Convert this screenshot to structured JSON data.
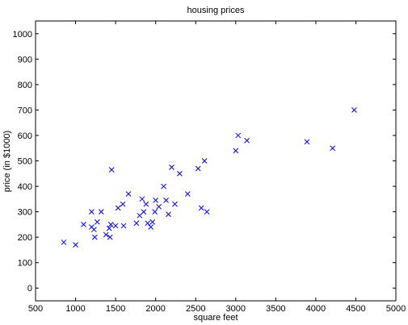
{
  "chart_data": {
    "type": "scatter",
    "title": "housing prices",
    "xlabel": "square feet",
    "ylabel": "price (in $1000)",
    "xlim": [
      500,
      5000
    ],
    "ylim": [
      -50,
      1050
    ],
    "xticks": [
      500,
      1000,
      1500,
      2000,
      2500,
      3000,
      3500,
      4000,
      4500,
      5000
    ],
    "yticks": [
      0,
      100,
      200,
      300,
      400,
      500,
      600,
      700,
      800,
      900,
      1000
    ],
    "marker": "x",
    "marker_color": "#0000ff",
    "grid": false,
    "series": [
      {
        "points": [
          {
            "x": 852,
            "y": 180
          },
          {
            "x": 1000,
            "y": 170
          },
          {
            "x": 1100,
            "y": 250
          },
          {
            "x": 1200,
            "y": 300
          },
          {
            "x": 1200,
            "y": 240
          },
          {
            "x": 1230,
            "y": 230
          },
          {
            "x": 1240,
            "y": 200
          },
          {
            "x": 1270,
            "y": 260
          },
          {
            "x": 1320,
            "y": 300
          },
          {
            "x": 1380,
            "y": 210
          },
          {
            "x": 1420,
            "y": 235
          },
          {
            "x": 1430,
            "y": 200
          },
          {
            "x": 1440,
            "y": 250
          },
          {
            "x": 1450,
            "y": 465
          },
          {
            "x": 1500,
            "y": 245
          },
          {
            "x": 1530,
            "y": 315
          },
          {
            "x": 1590,
            "y": 330
          },
          {
            "x": 1600,
            "y": 245
          },
          {
            "x": 1660,
            "y": 370
          },
          {
            "x": 1760,
            "y": 255
          },
          {
            "x": 1800,
            "y": 285
          },
          {
            "x": 1830,
            "y": 350
          },
          {
            "x": 1850,
            "y": 300
          },
          {
            "x": 1880,
            "y": 330
          },
          {
            "x": 1900,
            "y": 255
          },
          {
            "x": 1940,
            "y": 240
          },
          {
            "x": 1960,
            "y": 260
          },
          {
            "x": 1990,
            "y": 300
          },
          {
            "x": 2000,
            "y": 345
          },
          {
            "x": 2040,
            "y": 320
          },
          {
            "x": 2100,
            "y": 400
          },
          {
            "x": 2130,
            "y": 345
          },
          {
            "x": 2160,
            "y": 290
          },
          {
            "x": 2200,
            "y": 475
          },
          {
            "x": 2240,
            "y": 330
          },
          {
            "x": 2300,
            "y": 450
          },
          {
            "x": 2400,
            "y": 370
          },
          {
            "x": 2530,
            "y": 470
          },
          {
            "x": 2570,
            "y": 315
          },
          {
            "x": 2610,
            "y": 500
          },
          {
            "x": 2640,
            "y": 300
          },
          {
            "x": 3000,
            "y": 540
          },
          {
            "x": 3030,
            "y": 600
          },
          {
            "x": 3140,
            "y": 580
          },
          {
            "x": 3890,
            "y": 575
          },
          {
            "x": 4210,
            "y": 550
          },
          {
            "x": 4480,
            "y": 700
          }
        ]
      }
    ]
  }
}
